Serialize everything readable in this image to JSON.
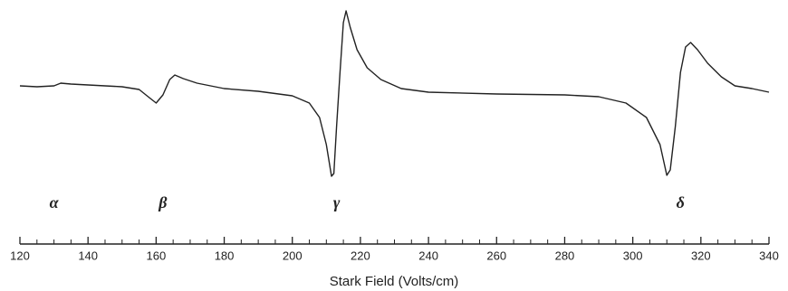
{
  "chart_data": {
    "type": "line",
    "xlabel": "Stark Field (Volts/cm)",
    "x": [
      120,
      125,
      130,
      132,
      135,
      140,
      145,
      150,
      155,
      158,
      160,
      162,
      164,
      165.5,
      168,
      172,
      180,
      190,
      200,
      205,
      208,
      210,
      211.5,
      212.2,
      213,
      214,
      215,
      215.8,
      217,
      219,
      222,
      226,
      232,
      240,
      260,
      280,
      290,
      298,
      304,
      308,
      310,
      311,
      312.5,
      314,
      315.5,
      317,
      319,
      322,
      326,
      330,
      335,
      340
    ],
    "series": [
      {
        "color": "#222222",
        "values": [
          5,
          4,
          5,
          8,
          7,
          6,
          5,
          4,
          1,
          -8,
          -14,
          -5,
          12,
          17,
          13,
          8,
          2,
          -1,
          -6,
          -14,
          -30,
          -60,
          -95,
          -92,
          -40,
          20,
          75,
          88,
          70,
          45,
          25,
          12,
          2,
          -2,
          -4,
          -5,
          -7,
          -14,
          -30,
          -60,
          -94,
          -88,
          -40,
          20,
          48,
          53,
          45,
          30,
          15,
          5,
          2,
          -2
        ]
      }
    ],
    "xlim": [
      120,
      340
    ],
    "ylim": [
      -110,
      100
    ],
    "xticks": [
      120,
      140,
      160,
      180,
      200,
      220,
      240,
      260,
      280,
      300,
      320,
      340
    ],
    "xminorticks": [
      125,
      130,
      135,
      145,
      150,
      155,
      165,
      170,
      175,
      185,
      190,
      195,
      205,
      210,
      215,
      225,
      230,
      235,
      245,
      250,
      255,
      265,
      270,
      275,
      285,
      290,
      295,
      305,
      310,
      315,
      325,
      330,
      335
    ],
    "annotations": [
      {
        "text": "α",
        "x": 130
      },
      {
        "text": "β",
        "x": 162
      },
      {
        "text": "γ",
        "x": 213
      },
      {
        "text": "δ",
        "x": 314
      }
    ]
  }
}
